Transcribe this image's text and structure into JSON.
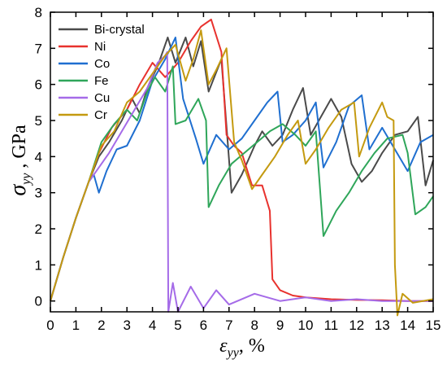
{
  "chart_data": {
    "type": "line",
    "xlabel_symbol": "ε",
    "xlabel_sub": "yy",
    "xlabel_unit": ", %",
    "ylabel_symbol": "σ",
    "ylabel_sub": "yy",
    "ylabel_unit": " , GPa",
    "xlim": [
      0,
      15
    ],
    "ylim": [
      -0.3,
      8
    ],
    "xticks": [
      "0",
      "1",
      "2",
      "3",
      "4",
      "5",
      "6",
      "7",
      "8",
      "9",
      "10",
      "11",
      "12",
      "13",
      "14",
      "15"
    ],
    "yticks": [
      "0",
      "1",
      "2",
      "3",
      "4",
      "5",
      "6",
      "7",
      "8"
    ],
    "grid": false,
    "legend_position": "top-left",
    "series": [
      {
        "name": "Bi-crystal",
        "color": "#4a4a4a",
        "points": [
          [
            0,
            0
          ],
          [
            0.5,
            1.2
          ],
          [
            1.0,
            2.3
          ],
          [
            1.5,
            3.3
          ],
          [
            1.9,
            4.0
          ],
          [
            2.3,
            4.4
          ],
          [
            2.8,
            5.0
          ],
          [
            3.2,
            5.6
          ],
          [
            3.5,
            5.2
          ],
          [
            3.8,
            5.9
          ],
          [
            4.2,
            6.5
          ],
          [
            4.6,
            7.3
          ],
          [
            4.9,
            6.6
          ],
          [
            5.3,
            7.3
          ],
          [
            5.6,
            6.5
          ],
          [
            5.9,
            7.2
          ],
          [
            6.2,
            5.8
          ],
          [
            6.7,
            6.7
          ],
          [
            7.1,
            3.0
          ],
          [
            7.5,
            3.5
          ],
          [
            8.0,
            4.3
          ],
          [
            8.3,
            4.7
          ],
          [
            8.7,
            4.3
          ],
          [
            9.1,
            4.6
          ],
          [
            9.5,
            5.3
          ],
          [
            9.9,
            5.9
          ],
          [
            10.2,
            4.6
          ],
          [
            10.6,
            5.1
          ],
          [
            11.0,
            5.6
          ],
          [
            11.4,
            5.1
          ],
          [
            11.8,
            3.8
          ],
          [
            12.2,
            3.3
          ],
          [
            12.6,
            3.6
          ],
          [
            13.0,
            4.1
          ],
          [
            13.5,
            4.6
          ],
          [
            14.0,
            4.7
          ],
          [
            14.4,
            5.1
          ],
          [
            14.7,
            3.2
          ],
          [
            15.0,
            3.9
          ]
        ]
      },
      {
        "name": "Ni",
        "color": "#e8322e",
        "points": [
          [
            0,
            0
          ],
          [
            0.5,
            1.2
          ],
          [
            1.0,
            2.3
          ],
          [
            1.5,
            3.3
          ],
          [
            1.9,
            4.1
          ],
          [
            2.4,
            4.8
          ],
          [
            3.0,
            5.3
          ],
          [
            3.5,
            6.0
          ],
          [
            4.0,
            6.6
          ],
          [
            4.5,
            6.2
          ],
          [
            5.0,
            6.6
          ],
          [
            5.5,
            7.2
          ],
          [
            5.9,
            7.6
          ],
          [
            6.3,
            7.8
          ],
          [
            6.7,
            6.9
          ],
          [
            6.9,
            4.6
          ],
          [
            7.2,
            4.3
          ],
          [
            7.5,
            4.1
          ],
          [
            7.9,
            3.2
          ],
          [
            8.3,
            3.2
          ],
          [
            8.6,
            2.5
          ],
          [
            8.7,
            0.6
          ],
          [
            9.0,
            0.3
          ],
          [
            9.5,
            0.15
          ],
          [
            10.0,
            0.1
          ],
          [
            11.0,
            0.05
          ],
          [
            12.0,
            0.03
          ],
          [
            13.0,
            0.02
          ],
          [
            14.0,
            0.0
          ],
          [
            15.0,
            0.0
          ]
        ]
      },
      {
        "name": "Co",
        "color": "#1f6fd0",
        "points": [
          [
            0,
            0
          ],
          [
            0.5,
            1.2
          ],
          [
            1.0,
            2.3
          ],
          [
            1.5,
            3.3
          ],
          [
            1.7,
            3.5
          ],
          [
            1.9,
            3.0
          ],
          [
            2.2,
            3.6
          ],
          [
            2.6,
            4.2
          ],
          [
            3.0,
            4.3
          ],
          [
            3.5,
            5.0
          ],
          [
            4.0,
            6.1
          ],
          [
            4.5,
            6.7
          ],
          [
            4.9,
            7.3
          ],
          [
            5.2,
            5.6
          ],
          [
            5.7,
            4.5
          ],
          [
            6.0,
            3.8
          ],
          [
            6.5,
            4.6
          ],
          [
            7.0,
            4.2
          ],
          [
            7.5,
            4.5
          ],
          [
            8.0,
            5.0
          ],
          [
            8.5,
            5.5
          ],
          [
            8.9,
            5.8
          ],
          [
            9.1,
            4.4
          ],
          [
            9.5,
            4.6
          ],
          [
            10.0,
            5.0
          ],
          [
            10.4,
            5.5
          ],
          [
            10.7,
            3.7
          ],
          [
            11.2,
            4.4
          ],
          [
            11.7,
            5.4
          ],
          [
            12.2,
            5.7
          ],
          [
            12.5,
            4.2
          ],
          [
            13.0,
            4.8
          ],
          [
            13.5,
            4.2
          ],
          [
            14.0,
            3.6
          ],
          [
            14.5,
            4.4
          ],
          [
            15.0,
            4.6
          ]
        ]
      },
      {
        "name": "Fe",
        "color": "#2fa65a",
        "points": [
          [
            0,
            0
          ],
          [
            0.5,
            1.2
          ],
          [
            1.0,
            2.3
          ],
          [
            1.5,
            3.3
          ],
          [
            2.0,
            4.4
          ],
          [
            2.5,
            4.9
          ],
          [
            3.0,
            5.3
          ],
          [
            3.4,
            5.0
          ],
          [
            3.8,
            5.8
          ],
          [
            4.1,
            6.2
          ],
          [
            4.5,
            5.8
          ],
          [
            4.8,
            6.5
          ],
          [
            4.9,
            4.9
          ],
          [
            5.3,
            5.0
          ],
          [
            5.8,
            5.6
          ],
          [
            6.1,
            5.0
          ],
          [
            6.2,
            2.6
          ],
          [
            6.6,
            3.2
          ],
          [
            7.1,
            3.8
          ],
          [
            7.6,
            4.1
          ],
          [
            8.1,
            4.4
          ],
          [
            8.6,
            4.7
          ],
          [
            9.1,
            4.9
          ],
          [
            9.6,
            4.6
          ],
          [
            10.0,
            4.3
          ],
          [
            10.4,
            4.7
          ],
          [
            10.7,
            1.8
          ],
          [
            11.2,
            2.5
          ],
          [
            11.7,
            3.0
          ],
          [
            12.2,
            3.6
          ],
          [
            12.7,
            4.1
          ],
          [
            13.2,
            4.5
          ],
          [
            13.8,
            4.6
          ],
          [
            14.0,
            4.1
          ],
          [
            14.3,
            2.4
          ],
          [
            14.7,
            2.6
          ],
          [
            15.0,
            2.9
          ]
        ]
      },
      {
        "name": "Cu",
        "color": "#a56be8",
        "points": [
          [
            0,
            0
          ],
          [
            0.5,
            1.2
          ],
          [
            1.0,
            2.3
          ],
          [
            1.5,
            3.3
          ],
          [
            1.9,
            3.7
          ],
          [
            2.3,
            4.1
          ],
          [
            2.8,
            4.7
          ],
          [
            3.3,
            5.3
          ],
          [
            3.8,
            5.9
          ],
          [
            4.2,
            6.6
          ],
          [
            4.5,
            6.8
          ],
          [
            4.58,
            6.9
          ],
          [
            4.62,
            -0.3
          ],
          [
            4.8,
            0.5
          ],
          [
            5.0,
            -0.3
          ],
          [
            5.5,
            0.4
          ],
          [
            6.0,
            -0.2
          ],
          [
            6.5,
            0.3
          ],
          [
            7.0,
            -0.1
          ],
          [
            8.0,
            0.2
          ],
          [
            9.0,
            0.0
          ],
          [
            10.0,
            0.1
          ],
          [
            11.0,
            0.0
          ],
          [
            12.0,
            0.05
          ],
          [
            13.0,
            0.0
          ],
          [
            14.0,
            0.0
          ],
          [
            15.0,
            0.0
          ]
        ]
      },
      {
        "name": "Cr",
        "color": "#c49a10",
        "points": [
          [
            0,
            0
          ],
          [
            0.5,
            1.2
          ],
          [
            1.0,
            2.3
          ],
          [
            1.5,
            3.3
          ],
          [
            2.0,
            4.3
          ],
          [
            2.5,
            4.7
          ],
          [
            3.0,
            5.5
          ],
          [
            3.5,
            5.8
          ],
          [
            4.0,
            6.3
          ],
          [
            4.5,
            6.8
          ],
          [
            4.9,
            7.1
          ],
          [
            5.3,
            6.1
          ],
          [
            5.6,
            6.7
          ],
          [
            5.9,
            7.5
          ],
          [
            6.2,
            6.0
          ],
          [
            6.5,
            6.4
          ],
          [
            6.9,
            7.0
          ],
          [
            7.2,
            4.4
          ],
          [
            7.5,
            3.9
          ],
          [
            7.9,
            3.1
          ],
          [
            8.3,
            3.5
          ],
          [
            8.8,
            4.0
          ],
          [
            9.3,
            4.6
          ],
          [
            9.7,
            5.0
          ],
          [
            10.0,
            3.8
          ],
          [
            10.4,
            4.2
          ],
          [
            10.9,
            4.8
          ],
          [
            11.4,
            5.3
          ],
          [
            11.9,
            5.5
          ],
          [
            12.1,
            4.0
          ],
          [
            12.5,
            4.8
          ],
          [
            13.0,
            5.5
          ],
          [
            13.2,
            5.1
          ],
          [
            13.45,
            5.0
          ],
          [
            13.5,
            1.0
          ],
          [
            13.6,
            -0.4
          ],
          [
            13.8,
            0.2
          ],
          [
            14.2,
            -0.05
          ],
          [
            15.0,
            0.05
          ]
        ]
      }
    ]
  }
}
